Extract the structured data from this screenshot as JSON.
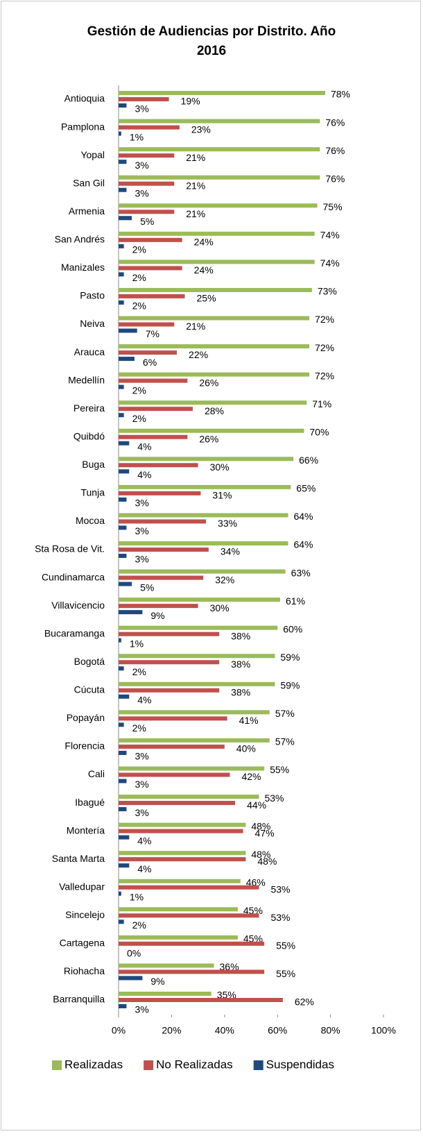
{
  "chart_data": {
    "type": "bar",
    "orientation": "horizontal",
    "title": "Gestión de Audiencias por Distrito. Año 2016",
    "categories": [
      "Antioquia",
      "Pamplona",
      "Yopal",
      "San Gil",
      "Armenia",
      "San Andrés",
      "Manizales",
      "Pasto",
      "Neiva",
      "Arauca",
      "Medellín",
      "Pereira",
      "Quibdó",
      "Buga",
      "Tunja",
      "Mocoa",
      "Sta Rosa de Vit.",
      "Cundinamarca",
      "Villavicencio",
      "Bucaramanga",
      "Bogotá",
      "Cúcuta",
      "Popayán",
      "Florencia",
      "Cali",
      "Ibagué",
      "Montería",
      "Santa Marta",
      "Valledupar",
      "Sincelejo",
      "Cartagena",
      "Riohacha",
      "Barranquilla"
    ],
    "series": [
      {
        "name": "Realizadas",
        "color": "#9bbb59",
        "values": [
          78,
          76,
          76,
          76,
          75,
          74,
          74,
          73,
          72,
          72,
          72,
          71,
          70,
          66,
          65,
          64,
          64,
          63,
          61,
          60,
          59,
          59,
          57,
          57,
          55,
          53,
          48,
          48,
          46,
          45,
          45,
          36,
          35
        ],
        "value_labels": [
          "78%",
          "76%",
          "76%",
          "76%",
          "75%",
          "74%",
          "74%",
          "73%",
          "72%",
          "72%",
          "72%",
          "71%",
          "70%",
          "66%",
          "65%",
          "64%",
          "64%",
          "63%",
          "61%",
          "60%",
          "59%",
          "59%",
          "57%",
          "57%",
          "55%",
          "53%",
          "48%",
          "48%",
          "46%",
          "45%",
          "45%",
          "36%",
          "35%"
        ]
      },
      {
        "name": "No Realizadas",
        "color": "#c0504d",
        "values": [
          19,
          23,
          21,
          21,
          21,
          24,
          24,
          25,
          21,
          22,
          26,
          28,
          26,
          30,
          31,
          33,
          34,
          32,
          30,
          38,
          38,
          38,
          41,
          40,
          42,
          44,
          47,
          48,
          53,
          53,
          55,
          55,
          62
        ],
        "value_labels": [
          "19%",
          "23%",
          "21%",
          "21%",
          "21%",
          "24%",
          "24%",
          "25%",
          "21%",
          "22%",
          "26%",
          "28%",
          "26%",
          "30%",
          "31%",
          "33%",
          "34%",
          "32%",
          "30%",
          "38%",
          "38%",
          "38%",
          "41%",
          "40%",
          "42%",
          "44%",
          "47%",
          "48%",
          "53%",
          "53%",
          "55%",
          "55%",
          "62%"
        ]
      },
      {
        "name": "Suspendidas",
        "color": "#1f497d",
        "values": [
          3,
          1,
          3,
          3,
          5,
          2,
          2,
          2,
          7,
          6,
          2,
          2,
          4,
          4,
          3,
          3,
          3,
          5,
          9,
          1,
          2,
          4,
          2,
          3,
          3,
          3,
          4,
          4,
          1,
          2,
          0,
          9,
          3
        ],
        "value_labels": [
          "3%",
          "1%",
          "3%",
          "3%",
          "5%",
          "2%",
          "2%",
          "2%",
          "7%",
          "6%",
          "2%",
          "2%",
          "4%",
          "4%",
          "3%",
          "3%",
          "3%",
          "5%",
          "9%",
          "1%",
          "2%",
          "4%",
          "2%",
          "3%",
          "3%",
          "3%",
          "4%",
          "4%",
          "1%",
          "2%",
          "0%",
          "9%",
          "3%"
        ]
      }
    ],
    "xlim": [
      0,
      100
    ],
    "xticks": [
      {
        "value": 0,
        "label": "0%"
      },
      {
        "value": 20,
        "label": "20%"
      },
      {
        "value": 40,
        "label": "40%"
      },
      {
        "value": 60,
        "label": "60%"
      },
      {
        "value": 80,
        "label": "80%"
      },
      {
        "value": 100,
        "label": "100%"
      }
    ],
    "legend": "bottom"
  }
}
